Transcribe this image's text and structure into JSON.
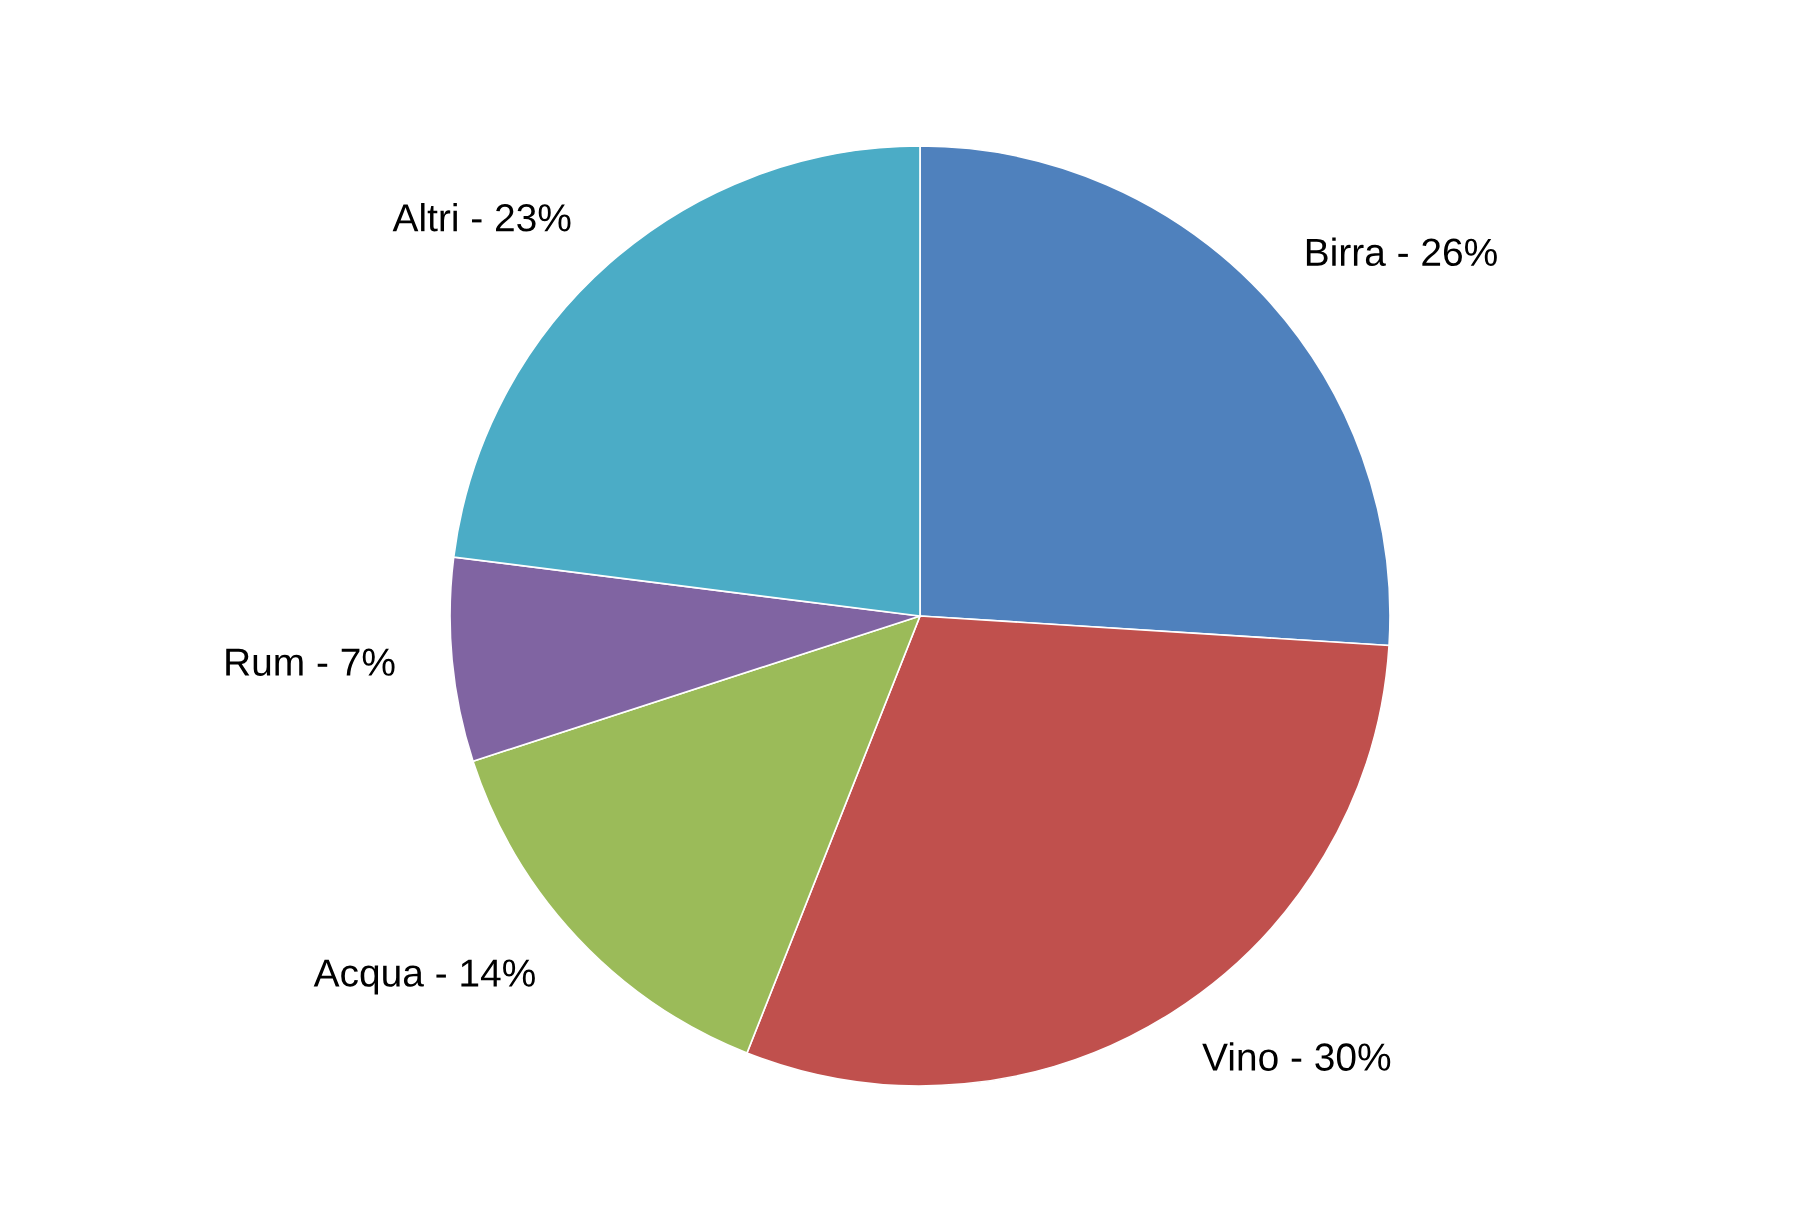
{
  "chart_data": {
    "type": "pie",
    "categories": [
      "Birra - 26%",
      "Vino - 30%",
      "Acqua - 14%",
      "Rum - 7%",
      "Altri - 23%"
    ],
    "values": [
      26,
      30,
      14,
      7,
      23
    ],
    "colors": [
      "#4f81bd",
      "#c0504d",
      "#9bbb59",
      "#8064a2",
      "#4bacc6"
    ]
  }
}
